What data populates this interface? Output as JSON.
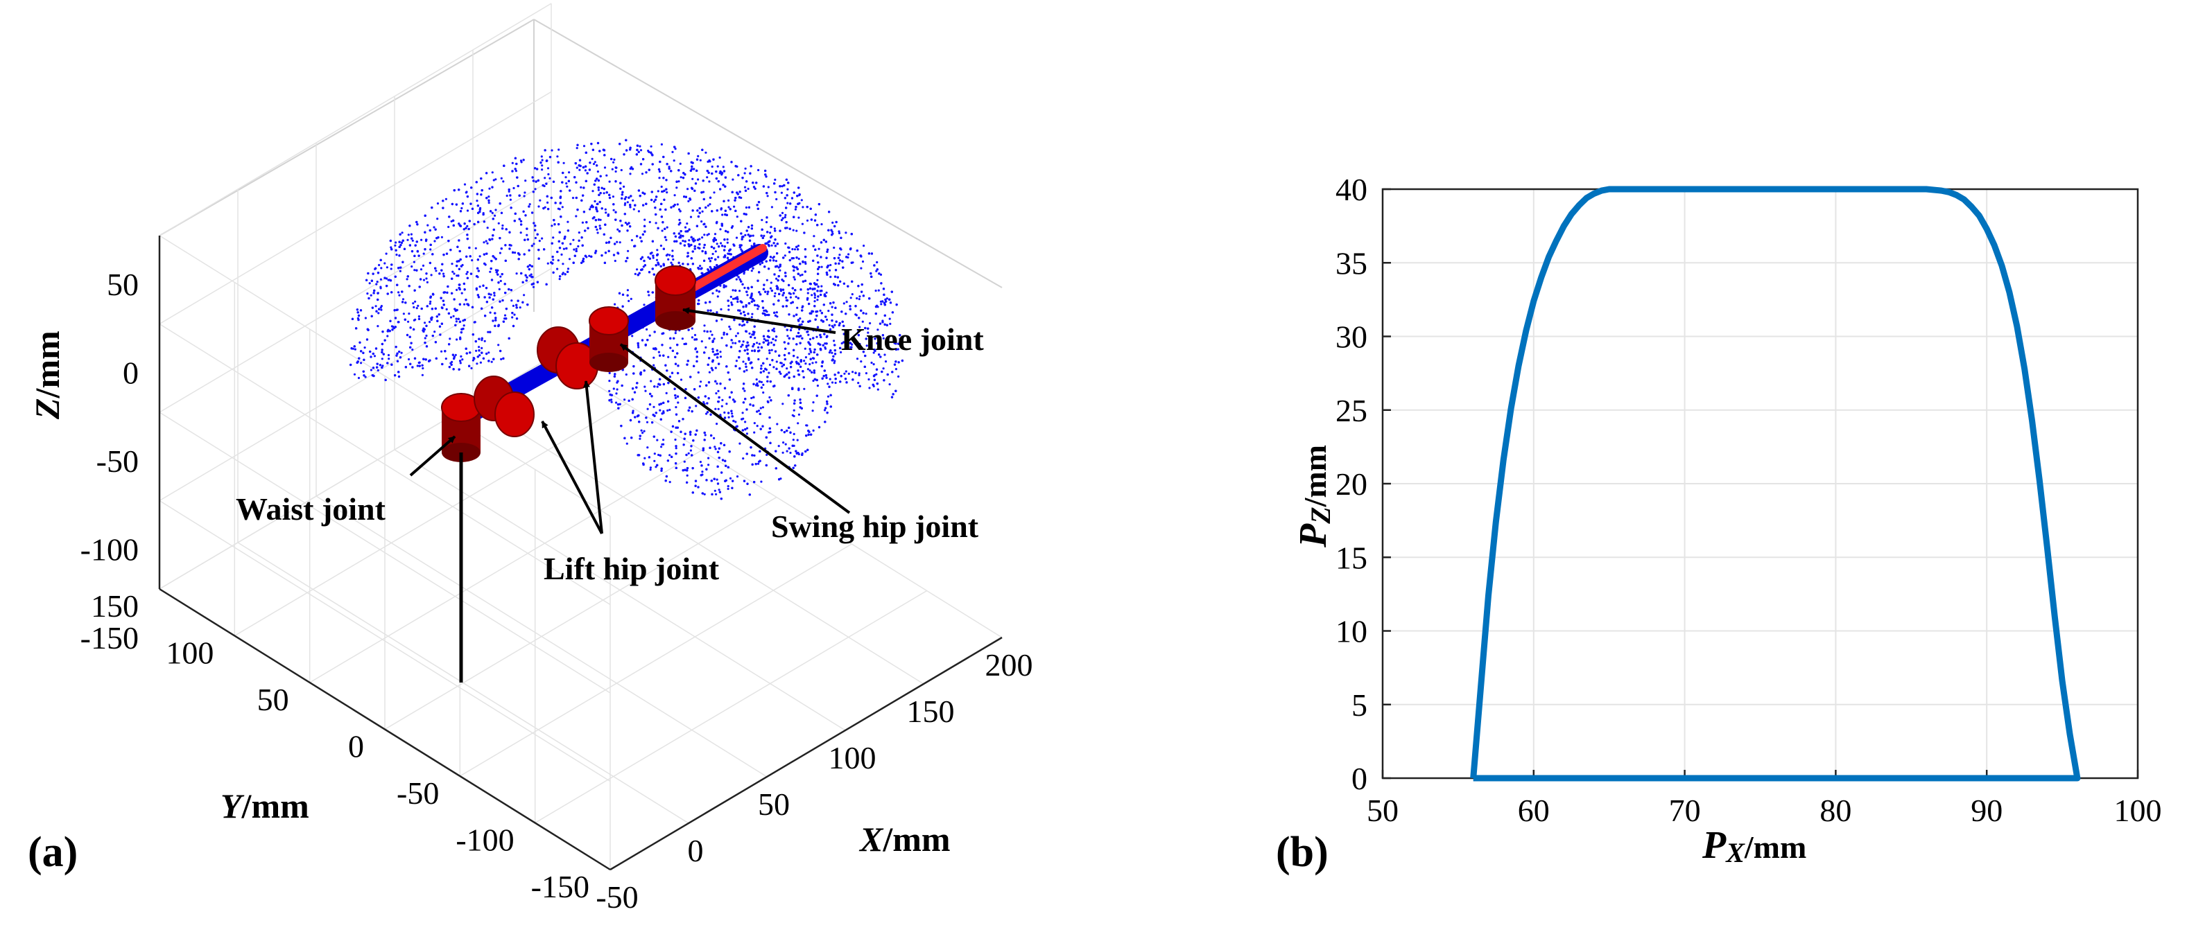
{
  "figure": {
    "panel_a_label": "(a)",
    "panel_b_label": "(b)"
  },
  "chart_data": [
    {
      "type": "scatter",
      "panel": "(a)",
      "projection": "3d",
      "title": "",
      "xlabel": {
        "symbol": "X",
        "unit": "/mm"
      },
      "ylabel": {
        "symbol": "Y",
        "unit": "/mm"
      },
      "zlabel": {
        "symbol": "Z",
        "unit": "/mm"
      },
      "x_ticks": [
        "-50",
        "0",
        "50",
        "100",
        "150",
        "200"
      ],
      "y_ticks": [
        "-150",
        "-100",
        "-50",
        "0",
        "50",
        "100",
        "150"
      ],
      "z_ticks": [
        "-150",
        "-100",
        "-50",
        "0",
        "50"
      ],
      "xlim": [
        -50,
        200
      ],
      "ylim": [
        -150,
        150
      ],
      "zlim": [
        -150,
        50
      ],
      "grid": true,
      "point_cloud": {
        "description_shown": "workspace point cloud (reachable foot positions)",
        "color": "#1515ff",
        "x_range": [
          0,
          200
        ],
        "y_range": [
          -120,
          120
        ],
        "z_range": [
          -130,
          40
        ]
      },
      "leg_colors": {
        "joint": "#b00000",
        "link": "#0000dd"
      },
      "annotations": [
        "Knee joint",
        "Swing hip joint",
        "Lift hip joint",
        "Waist joint"
      ]
    },
    {
      "type": "line",
      "panel": "(b)",
      "title": "",
      "xlabel": {
        "symbol": "P",
        "subscript": "X",
        "unit": "/mm"
      },
      "ylabel": {
        "symbol": "P",
        "subscript": "Z",
        "unit": "/mm"
      },
      "xlim": [
        50,
        100
      ],
      "ylim": [
        0,
        40
      ],
      "x_ticks": [
        50,
        60,
        70,
        80,
        90,
        100
      ],
      "y_ticks": [
        0,
        5,
        10,
        15,
        20,
        25,
        30,
        35,
        40
      ],
      "grid": true,
      "series": [
        {
          "color": "#0072bd",
          "x": [
            56,
            56.5,
            57,
            57.5,
            58,
            58.5,
            59,
            59.5,
            60,
            60.5,
            61,
            61.5,
            62,
            62.5,
            63,
            63.5,
            64,
            64.5,
            65,
            66,
            70,
            75,
            80,
            85,
            86,
            87,
            87.5,
            88,
            88.5,
            89,
            89.5,
            90,
            90.5,
            91,
            91.5,
            92,
            92.5,
            93,
            93.5,
            94,
            94.5,
            95,
            95.5,
            96,
            56
          ],
          "y": [
            0,
            6.2,
            12.4,
            17.4,
            21.6,
            25.1,
            28,
            30.4,
            32.4,
            34,
            35.4,
            36.5,
            37.5,
            38.3,
            38.9,
            39.4,
            39.7,
            39.9,
            40,
            40,
            40,
            40,
            40,
            40,
            40,
            39.9,
            39.8,
            39.6,
            39.3,
            38.8,
            38.2,
            37.3,
            36.2,
            34.8,
            33,
            30.7,
            27.8,
            24.3,
            20.2,
            15.7,
            11,
            6.6,
            3,
            0,
            0
          ]
        }
      ]
    }
  ]
}
